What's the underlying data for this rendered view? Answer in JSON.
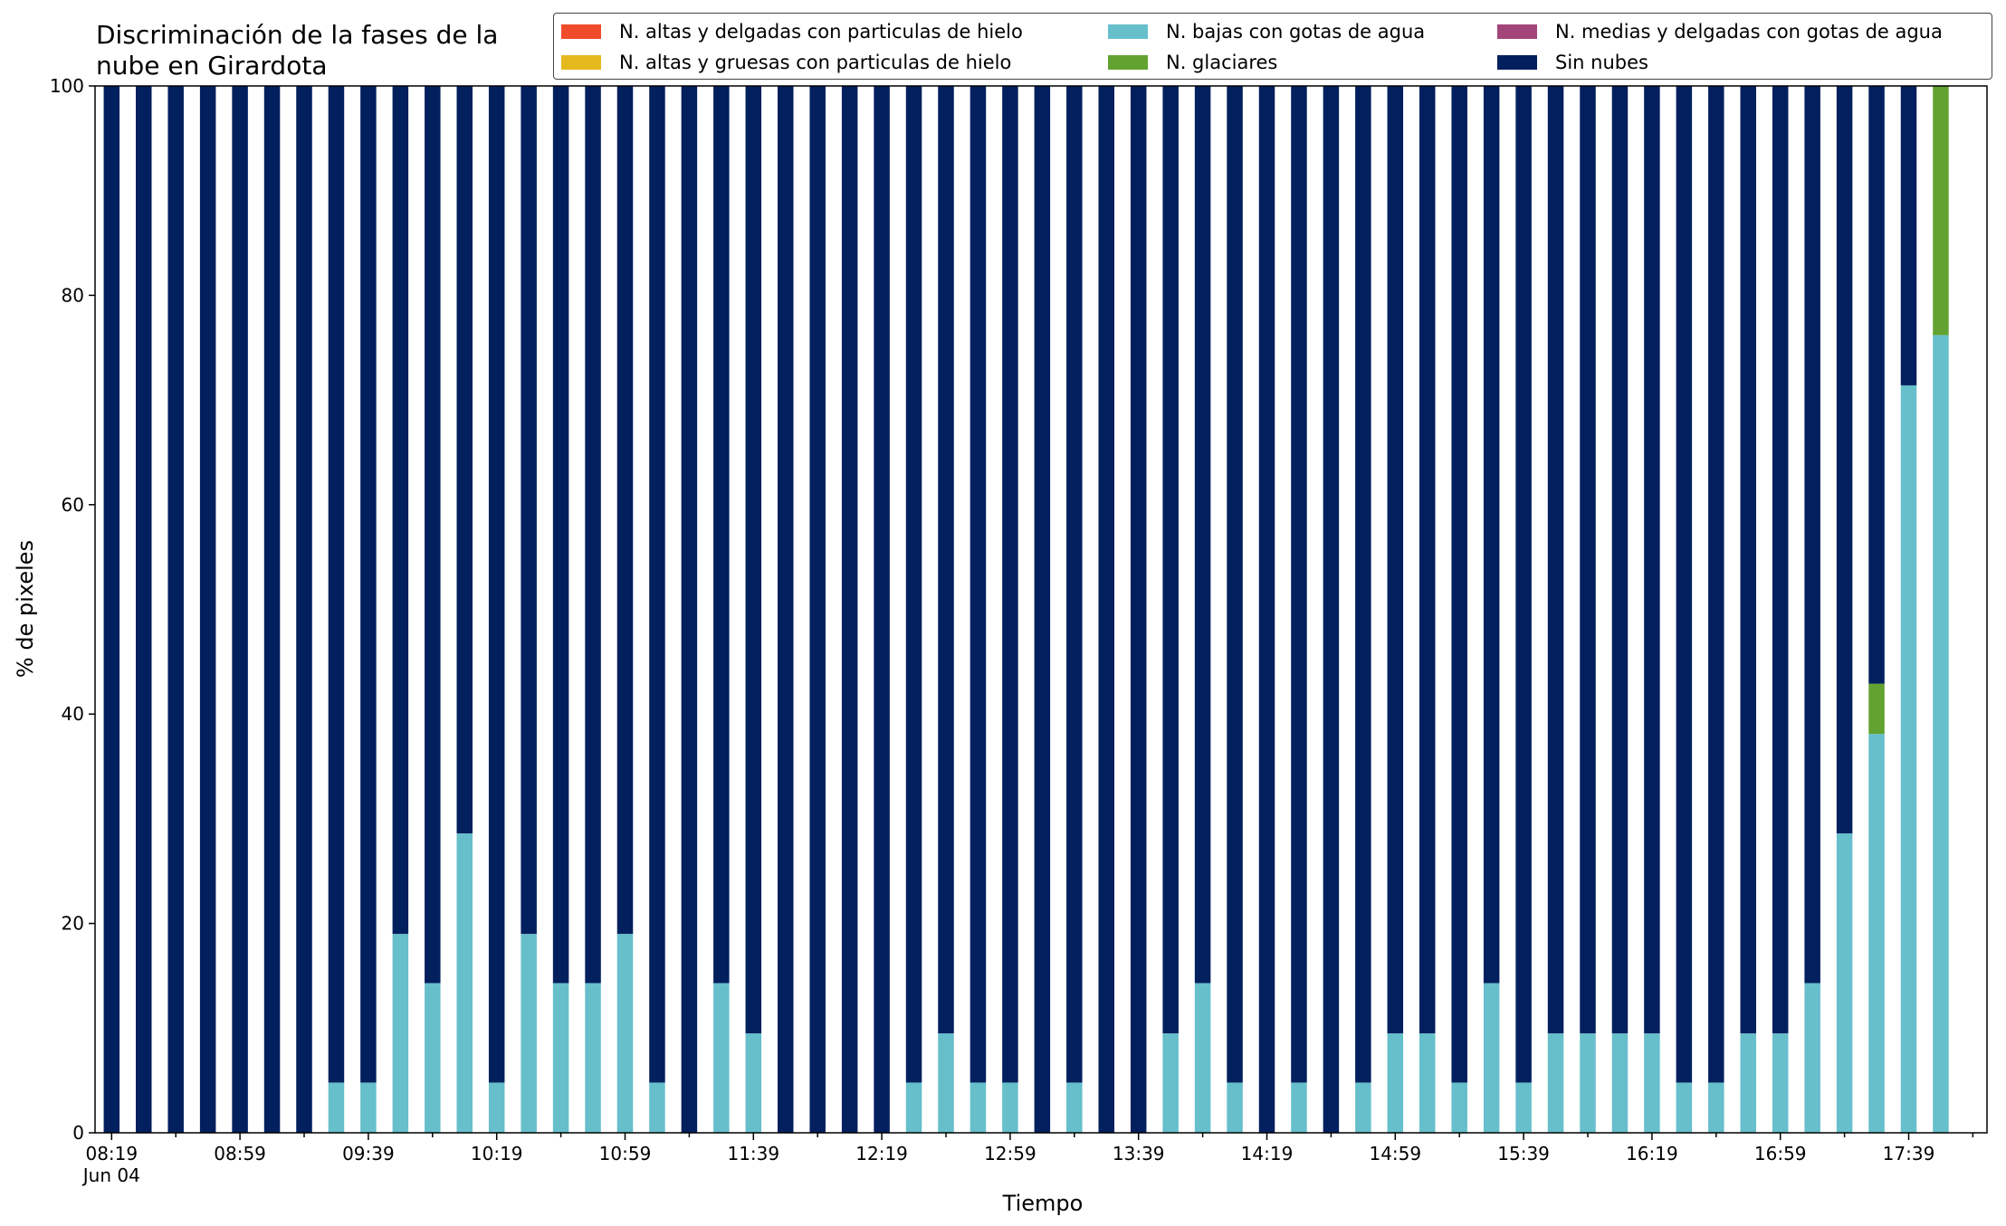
{
  "chart_data": {
    "type": "bar",
    "stacked": true,
    "title": "Discriminación de la fases de la\nnube en Girardota",
    "xlabel": "Tiempo",
    "ylabel": "% de pixeles",
    "ylim": [
      0,
      100
    ],
    "yticks": [
      0,
      20,
      40,
      60,
      80,
      100
    ],
    "x_tick_labels": [
      "08:19\nJun 04",
      "08:59",
      "09:39",
      "10:19",
      "10:59",
      "11:39",
      "12:19",
      "12:59",
      "13:39",
      "14:19",
      "14:59",
      "15:39",
      "16:19",
      "16:59",
      "17:39"
    ],
    "x_tick_interval_bars": 4,
    "legend_position": "top-right",
    "grid": false,
    "series": [
      {
        "name": "N. altas y delgadas con particulas de hielo",
        "color": "#f04b2b",
        "values": [
          0,
          0,
          0,
          0,
          0,
          0,
          0,
          0,
          0,
          0,
          0,
          0,
          0,
          0,
          0,
          0,
          0,
          0,
          0,
          0,
          0,
          0,
          0,
          0,
          0,
          0,
          0,
          0,
          0,
          0,
          0,
          0,
          0,
          0,
          0,
          0,
          0,
          0,
          0,
          0,
          0,
          0,
          0,
          0,
          0,
          0,
          0,
          0,
          0,
          0,
          0,
          0,
          0,
          0,
          0,
          0,
          0,
          0
        ]
      },
      {
        "name": "N. altas y gruesas con particulas de hielo",
        "color": "#e6b91e",
        "values": [
          0,
          0,
          0,
          0,
          0,
          0,
          0,
          0,
          0,
          0,
          0,
          0,
          0,
          0,
          0,
          0,
          0,
          0,
          0,
          0,
          0,
          0,
          0,
          0,
          0,
          0,
          0,
          0,
          0,
          0,
          0,
          0,
          0,
          0,
          0,
          0,
          0,
          0,
          0,
          0,
          0,
          0,
          0,
          0,
          0,
          0,
          0,
          0,
          0,
          0,
          0,
          0,
          0,
          0,
          0,
          0,
          0,
          0
        ]
      },
      {
        "name": "N. bajas con gotas de agua",
        "color": "#66bfcb",
        "values": [
          0,
          0,
          0,
          0,
          0,
          0,
          0,
          4.8,
          4.8,
          19,
          14.3,
          28.6,
          4.8,
          19,
          14.3,
          14.3,
          19,
          4.8,
          0,
          14.3,
          9.5,
          0,
          0,
          0,
          0,
          4.8,
          9.5,
          4.8,
          4.8,
          0,
          4.8,
          0,
          0,
          9.5,
          14.3,
          4.8,
          0,
          4.8,
          0,
          4.8,
          9.5,
          9.5,
          4.8,
          14.3,
          4.8,
          9.5,
          9.5,
          9.5,
          9.5,
          4.8,
          4.8,
          9.5,
          9.5,
          14.3,
          28.6,
          38.1,
          71.4,
          76.2
        ]
      },
      {
        "name": "N. glaciares",
        "color": "#62a230",
        "values": [
          0,
          0,
          0,
          0,
          0,
          0,
          0,
          0,
          0,
          0,
          0,
          0,
          0,
          0,
          0,
          0,
          0,
          0,
          0,
          0,
          0,
          0,
          0,
          0,
          0,
          0,
          0,
          0,
          0,
          0,
          0,
          0,
          0,
          0,
          0,
          0,
          0,
          0,
          0,
          0,
          0,
          0,
          0,
          0,
          0,
          0,
          0,
          0,
          0,
          0,
          0,
          0,
          0,
          0,
          0,
          4.8,
          0,
          23.8
        ]
      },
      {
        "name": "N. medias y delgadas con gotas de agua",
        "color": "#a3457a",
        "values": [
          0,
          0,
          0,
          0,
          0,
          0,
          0,
          0,
          0,
          0,
          0,
          0,
          0,
          0,
          0,
          0,
          0,
          0,
          0,
          0,
          0,
          0,
          0,
          0,
          0,
          0,
          0,
          0,
          0,
          0,
          0,
          0,
          0,
          0,
          0,
          0,
          0,
          0,
          0,
          0,
          0,
          0,
          0,
          0,
          0,
          0,
          0,
          0,
          0,
          0,
          0,
          0,
          0,
          0,
          0,
          0,
          0,
          0
        ]
      },
      {
        "name": "Sin nubes",
        "color": "#021f5e",
        "values": [
          100,
          100,
          100,
          100,
          100,
          100,
          100,
          95.2,
          95.2,
          81,
          85.7,
          71.4,
          95.2,
          81,
          85.7,
          85.7,
          81,
          95.2,
          100,
          85.7,
          90.5,
          100,
          100,
          100,
          100,
          95.2,
          90.5,
          95.2,
          95.2,
          100,
          95.2,
          100,
          100,
          90.5,
          85.7,
          95.2,
          100,
          95.2,
          100,
          95.2,
          90.5,
          90.5,
          95.2,
          85.7,
          95.2,
          90.5,
          90.5,
          90.5,
          90.5,
          95.2,
          95.2,
          90.5,
          90.5,
          85.7,
          71.4,
          57.1,
          28.6,
          0
        ]
      }
    ]
  }
}
